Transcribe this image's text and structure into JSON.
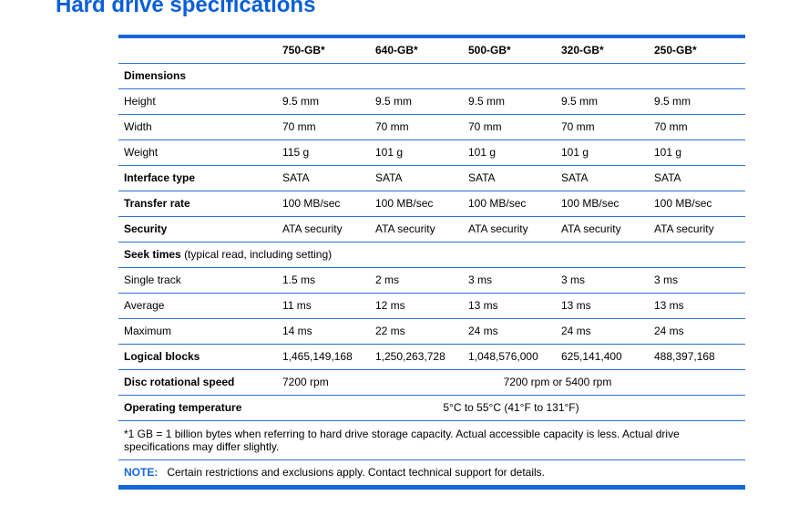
{
  "title": "Hard drive specifications",
  "columns": [
    "750-GB*",
    "640-GB*",
    "500-GB*",
    "320-GB*",
    "250-GB*"
  ],
  "sections": {
    "dimensions": "Dimensions",
    "seek_label": "Seek times",
    "seek_sub": "(typical read, including setting)"
  },
  "rows": {
    "height": {
      "label": "Height",
      "values": [
        "9.5 mm",
        "9.5 mm",
        "9.5 mm",
        "9.5 mm",
        "9.5 mm"
      ]
    },
    "width": {
      "label": "Width",
      "values": [
        "70 mm",
        "70 mm",
        "70 mm",
        "70 mm",
        "70 mm"
      ]
    },
    "weight": {
      "label": "Weight",
      "values": [
        "115 g",
        "101 g",
        "101 g",
        "101 g",
        "101 g"
      ]
    },
    "interface": {
      "label": "Interface type",
      "values": [
        "SATA",
        "SATA",
        "SATA",
        "SATA",
        "SATA"
      ]
    },
    "transfer": {
      "label": "Transfer rate",
      "values": [
        "100 MB/sec",
        "100 MB/sec",
        "100 MB/sec",
        "100 MB/sec",
        "100 MB/sec"
      ]
    },
    "security": {
      "label": "Security",
      "values": [
        "ATA security",
        "ATA security",
        "ATA security",
        "ATA security",
        "ATA security"
      ]
    },
    "single": {
      "label": "Single track",
      "values": [
        "1.5 ms",
        "2 ms",
        "3 ms",
        "3 ms",
        "3 ms"
      ]
    },
    "average": {
      "label": "Average",
      "values": [
        "11 ms",
        "12 ms",
        "13 ms",
        "13 ms",
        "13 ms"
      ]
    },
    "maximum": {
      "label": "Maximum",
      "values": [
        "14 ms",
        "22 ms",
        "24 ms",
        "24 ms",
        "24 ms"
      ]
    },
    "logical": {
      "label": "Logical blocks",
      "values": [
        "1,465,149,168",
        "1,250,263,728",
        "1,048,576,000",
        "625,141,400",
        "488,397,168"
      ]
    },
    "rotation": {
      "label": "Disc rotational speed",
      "first": "7200 rpm",
      "rest": "7200 rpm or 5400 rpm"
    },
    "temperature": {
      "label": "Operating temperature",
      "value": "5°C to 55°C (41°F to 131°F)"
    }
  },
  "footnote": "*1 GB = 1 billion bytes when referring to hard drive storage capacity. Actual accessible capacity is less. Actual drive specifications may differ slightly.",
  "note": {
    "label": "NOTE:",
    "text": "Certain restrictions and exclusions apply. Contact technical support for details."
  }
}
